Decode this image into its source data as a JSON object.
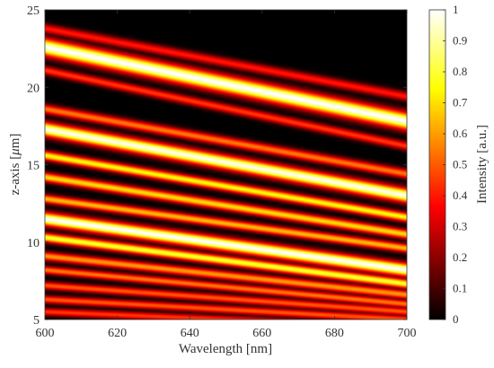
{
  "chart_data": {
    "type": "heatmap",
    "xlabel": "Wavelength [nm]",
    "ylabel_prefix": "z-axis [",
    "ylabel_mu": "μ",
    "ylabel_suffix": "m]",
    "xlim": [
      600,
      700
    ],
    "ylim": [
      5,
      25
    ],
    "x_ticks": [
      "600",
      "620",
      "640",
      "660",
      "680",
      "700"
    ],
    "y_ticks": [
      "5",
      "10",
      "15",
      "20",
      "25"
    ],
    "colorbar": {
      "label": "Intensity [a.u.]",
      "range": [
        0,
        1
      ],
      "ticks": [
        "0",
        "0.1",
        "0.2",
        "0.3",
        "0.4",
        "0.5",
        "0.6",
        "0.7",
        "0.8",
        "0.9",
        "1"
      ],
      "colormap": "hot"
    },
    "bands": [
      {
        "z_at_600": 22.6,
        "z_at_700": 17.8,
        "peak": 1.0,
        "width": 0.55
      },
      {
        "z_at_600": 17.3,
        "z_at_700": 13.0,
        "peak": 0.98,
        "width": 0.45
      },
      {
        "z_at_600": 11.5,
        "z_at_700": 8.2,
        "peak": 1.0,
        "width": 0.42
      },
      {
        "z_at_600": 23.8,
        "z_at_700": 19.4,
        "peak": 0.4,
        "width": 0.3
      },
      {
        "z_at_600": 21.1,
        "z_at_700": 16.2,
        "peak": 0.45,
        "width": 0.28
      },
      {
        "z_at_600": 18.6,
        "z_at_700": 14.4,
        "peak": 0.55,
        "width": 0.3
      },
      {
        "z_at_600": 15.6,
        "z_at_700": 11.6,
        "peak": 0.75,
        "width": 0.3
      },
      {
        "z_at_600": 14.2,
        "z_at_700": 10.5,
        "peak": 0.7,
        "width": 0.3
      },
      {
        "z_at_600": 12.8,
        "z_at_700": 9.6,
        "peak": 0.65,
        "width": 0.28
      },
      {
        "z_at_600": 10.3,
        "z_at_700": 7.3,
        "peak": 0.8,
        "width": 0.3
      },
      {
        "z_at_600": 9.1,
        "z_at_700": 6.6,
        "peak": 0.6,
        "width": 0.28
      },
      {
        "z_at_600": 8.2,
        "z_at_700": 6.0,
        "peak": 0.55,
        "width": 0.25
      },
      {
        "z_at_600": 7.2,
        "z_at_700": 5.5,
        "peak": 0.5,
        "width": 0.25
      },
      {
        "z_at_600": 6.3,
        "z_at_700": 5.0,
        "peak": 0.5,
        "width": 0.25
      },
      {
        "z_at_600": 5.5,
        "z_at_700": 4.5,
        "peak": 0.45,
        "width": 0.25
      }
    ]
  }
}
